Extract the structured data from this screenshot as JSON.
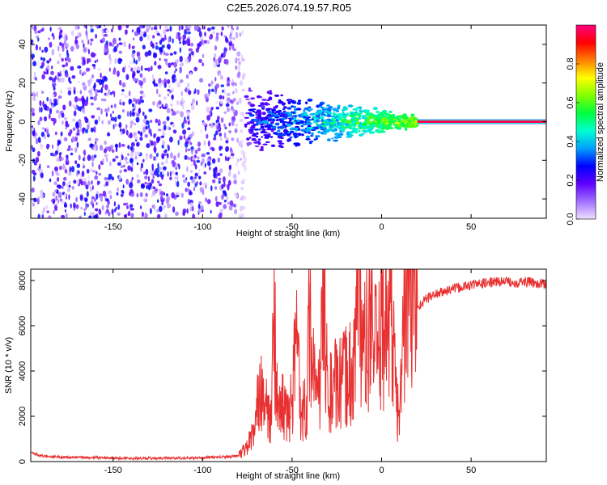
{
  "figure": {
    "title": "C2E5.2026.074.19.57.R05"
  },
  "chart_data": [
    {
      "type": "heatmap",
      "xlabel": "Height of straight line (km)",
      "ylabel": "Frequency (Hz)",
      "xlim": [
        -196,
        92
      ],
      "ylim": [
        -50,
        50
      ],
      "xticks": [
        -150,
        -100,
        -50,
        0,
        50
      ],
      "yticks": [
        -40,
        -20,
        0,
        20,
        40
      ],
      "colorbar": {
        "label": "Normalized spectral amplitude",
        "range": [
          0,
          1
        ],
        "ticks": [
          0.0,
          0.2,
          0.4,
          0.6,
          0.8
        ],
        "colormap": [
          "#f0e0ff",
          "#a070ff",
          "#6000ff",
          "#0000ff",
          "#00a0ff",
          "#00ffd0",
          "#00ff40",
          "#80ff00",
          "#ffff00",
          "#ff8000",
          "#ff0000",
          "#ff0080"
        ]
      },
      "regions": [
        {
          "name": "scattered noise",
          "x_range": [
            -196,
            -76
          ],
          "freq_range": [
            -50,
            50
          ],
          "amplitude": 0.1
        },
        {
          "name": "transition",
          "x_range": [
            -76,
            20
          ],
          "freq_range": [
            -8,
            8
          ],
          "amplitude": 0.45
        },
        {
          "name": "steady tone",
          "x_range": [
            20,
            92
          ],
          "freq": 0,
          "amplitude": 1.0
        }
      ]
    },
    {
      "type": "line",
      "xlabel": "Height of straight line (km)",
      "ylabel": "SNR (10 * v/v)",
      "xlim": [
        -196,
        92
      ],
      "ylim": [
        0,
        8500
      ],
      "xticks": [
        -150,
        -100,
        -50,
        0,
        50
      ],
      "yticks": [
        0,
        2000,
        4000,
        6000,
        8000
      ],
      "color": "#e83030",
      "series": [
        {
          "x": [
            -196,
            -190,
            -180,
            -170,
            -160,
            -150,
            -140,
            -130,
            -120,
            -110,
            -100,
            -95,
            -90,
            -85,
            -80,
            -78,
            -75,
            -72,
            -70,
            -68,
            -65,
            -62,
            -60,
            -58,
            -55,
            -52,
            -50,
            -47,
            -45,
            -42,
            -40,
            -37,
            -35,
            -32,
            -30,
            -27,
            -25,
            -22,
            -20,
            -17,
            -15,
            -13,
            -10,
            -8,
            -5,
            -2,
            0,
            2,
            5,
            8,
            10,
            12,
            15,
            18,
            20,
            25,
            30,
            35,
            40,
            45,
            50,
            55,
            60,
            65,
            70,
            75,
            80,
            85,
            90
          ],
          "y": [
            400,
            250,
            200,
            180,
            170,
            160,
            150,
            150,
            160,
            150,
            160,
            180,
            200,
            220,
            250,
            400,
            700,
            1200,
            1600,
            4000,
            2500,
            1500,
            6800,
            2000,
            2600,
            1800,
            2800,
            5700,
            2200,
            2500,
            6800,
            2700,
            3000,
            7200,
            2600,
            3500,
            3200,
            3400,
            3800,
            3900,
            4600,
            8400,
            4800,
            5500,
            5800,
            4200,
            6400,
            6200,
            7000,
            3000,
            1600,
            6000,
            7600,
            7000,
            6800,
            7200,
            7400,
            7500,
            7650,
            7700,
            7800,
            7850,
            7900,
            7950,
            7950,
            7900,
            7950,
            7900,
            7850
          ]
        }
      ]
    }
  ]
}
